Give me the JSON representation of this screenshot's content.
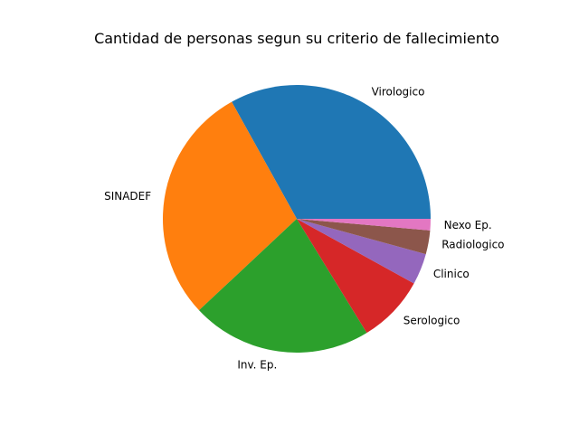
{
  "chart_data": {
    "type": "pie",
    "title": "Cantidad de personas segun su criterio de fallecimiento",
    "categories": [
      "Virologico",
      "SINADEF",
      "Inv. Ep.",
      "Serologico",
      "Clinico",
      "Radiologico",
      "Nexo Ep."
    ],
    "values": [
      33.4,
      29.2,
      22.0,
      8.3,
      3.8,
      2.9,
      1.4
    ],
    "colors": [
      "#1f77b4",
      "#ff7f0e",
      "#2ca02c",
      "#d62728",
      "#9467bd",
      "#8c564b",
      "#e377c2"
    ],
    "start_angle": 0,
    "direction": "counterclockwise",
    "legend": "none"
  }
}
